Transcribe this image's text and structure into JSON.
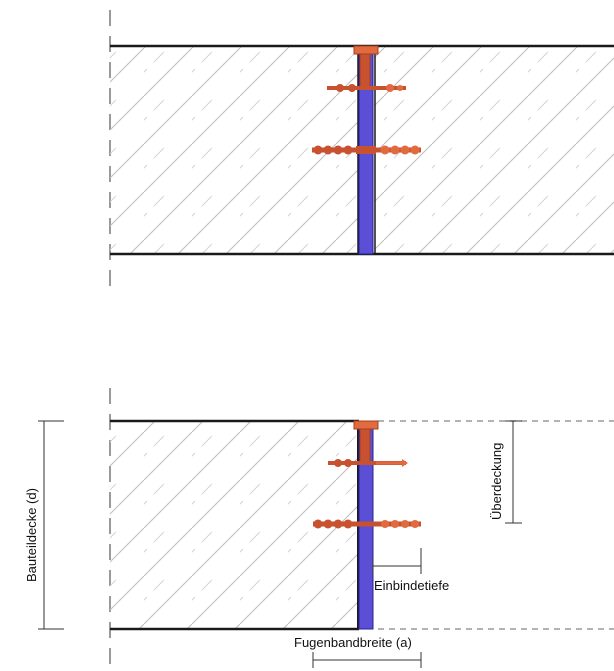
{
  "labels": {
    "component_thickness": "Bauteildecke (d)",
    "cover": "Überdeckung",
    "embedment_depth": "Einbindetiefe",
    "waterstop_width": "Fugenbandbreite (a)"
  },
  "colors": {
    "waterstop": "#5b4fd6",
    "waterstop_edge": "#2a2196",
    "anchor": "#c8522f",
    "anchor_light": "#e26a3f",
    "hatch": "#bdbdbd",
    "outline": "#1a1a1a",
    "dim": "#333333",
    "dashed_edge": "#9a9a9a"
  }
}
